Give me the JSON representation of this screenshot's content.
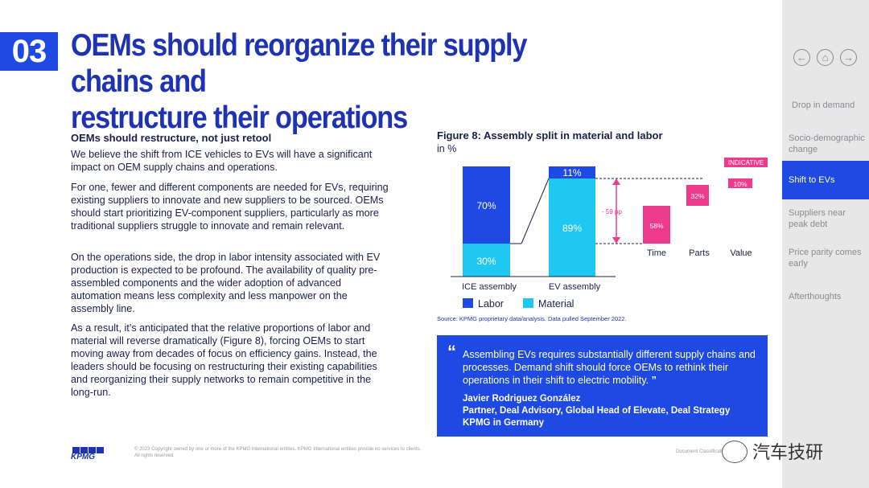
{
  "section_number": "03",
  "title_line1": "OEMs should reorganize their supply chains and",
  "title_line2": "restructure their operations",
  "left": {
    "subheading": "OEMs should restructure, not just retool",
    "paragraphs": [
      "We believe the shift from ICE vehicles to EVs will have a significant impact on OEM supply chains and operations.",
      "For one, fewer and different components are needed for EVs, requiring existing suppliers to innovate and new suppliers to be sourced. OEMs should start prioritizing EV-component suppliers, particularly as more traditional suppliers struggle to innovate and remain relevant.",
      "On the operations side, the drop in labor intensity associated with EV production is expected to be profound. The availability of quality pre-assembled components and the wider adoption of advanced automation means less complexity and less manpower on the assembly line.",
      "As a result, it’s anticipated that the relative proportions of labor and material will reverse dramatically (Figure 8), forcing OEMs to start moving away from decades of focus on efficiency gains. Instead, the leaders should be focusing on restructuring their existing capabilities and reorganizing their supply networks to remain competitive in the long-run."
    ]
  },
  "figure": {
    "title": "Figure 8: Assembly split in material and labor",
    "unit": "in %",
    "indicative_label": "INDICATIVE",
    "diff_label": "- 59 pp",
    "legend_labor": "Labor",
    "legend_material": "Material",
    "source": "Source: KPMG proprietary data/analysis. Data pulled  September 2022."
  },
  "chart_data": {
    "type": "bar",
    "title": "Figure 8: Assembly split in material and labor",
    "ylabel": "in %",
    "categories": [
      "ICE assembly",
      "EV assembly"
    ],
    "series": [
      {
        "name": "Labor",
        "values": [
          70,
          11
        ]
      },
      {
        "name": "Material",
        "values": [
          30,
          89
        ]
      }
    ],
    "waterfall": {
      "categories": [
        "Time",
        "Parts",
        "Value"
      ],
      "values": [
        58,
        32,
        10
      ],
      "labels": [
        "58%",
        "32%",
        "10%"
      ]
    },
    "labels": {
      "ice_labor": "70%",
      "ice_material": "30%",
      "ev_labor": "11%",
      "ev_material": "89%"
    },
    "colors": {
      "labor": "#1e49e2",
      "material": "#1ec8f0",
      "breakdown": "#ee3a8c"
    }
  },
  "quote": {
    "text": "Assembling EVs requires substantially different supply chains and processes. Demand shift should force OEMs to rethink their operations in their shift to electric mobility.",
    "author": "Javier Rodriguez González",
    "role": "Partner, Deal Advisory, Global Head of Elevate, Deal Strategy",
    "org": "KPMG in Germany"
  },
  "sidebar": {
    "nav_back": "←",
    "nav_home": "⌂",
    "nav_forward": "→",
    "items": [
      {
        "label": "Drop in demand"
      },
      {
        "label": "Socio-demographic change"
      },
      {
        "label": "Shift to EVs"
      },
      {
        "label": "Suppliers near peak debt"
      },
      {
        "label": "Price parity comes early"
      },
      {
        "label": "Afterthoughts"
      }
    ]
  },
  "footer": {
    "logo": "KPMG",
    "copyright_line1": "© 2023 Copyright owned by one or more of the KPMG International entities. KPMG International entities provide no services to clients.",
    "copyright_line2": "All rights reserved.",
    "doc_class": "Document Classification",
    "watermark": "汽车技研"
  },
  "colors": {
    "brand_blue": "#1e32b4",
    "accent_blue": "#1e49e2",
    "cyan": "#1ec8f0",
    "pink": "#ee3a8c"
  }
}
